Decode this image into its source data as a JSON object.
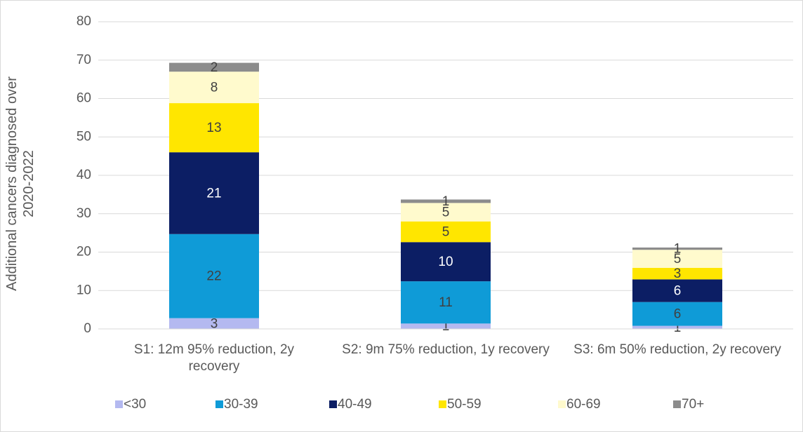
{
  "chart_data": {
    "type": "stacked_bar",
    "y_label": "Additional cancers diagnosed over 2020-2022",
    "categories": [
      "S1: 12m 95% reduction, 2y recovery",
      "S2: 9m 75% reduction, 1y recovery",
      "S3: 6m 50% reduction, 2y recovery"
    ],
    "series": [
      {
        "name": "<30",
        "color": "#b4b9f0",
        "label_color": "#404040",
        "values": [
          2.8,
          1.4,
          0.8
        ],
        "value_labels": [
          "3",
          "1",
          "1"
        ]
      },
      {
        "name": "30-39",
        "color": "#0f9bd7",
        "label_color": "#404040",
        "values": [
          21.9,
          11.0,
          6.2
        ],
        "value_labels": [
          "22",
          "11",
          "6"
        ]
      },
      {
        "name": "40-49",
        "color": "#0c1e64",
        "label_color": "#ffffff",
        "values": [
          21.3,
          10.2,
          5.9
        ],
        "value_labels": [
          "21",
          "10",
          "6"
        ]
      },
      {
        "name": "50-59",
        "color": "#ffe600",
        "label_color": "#404040",
        "values": [
          12.8,
          5.4,
          3.0
        ],
        "value_labels": [
          "13",
          "5",
          "3"
        ]
      },
      {
        "name": "60-69",
        "color": "#fffacd",
        "label_color": "#404040",
        "values": [
          8.2,
          4.8,
          4.7
        ],
        "value_labels": [
          "8",
          "5",
          "5"
        ]
      },
      {
        "name": "70+",
        "color": "#8c8c8c",
        "label_color": "#404040",
        "values": [
          2.3,
          0.9,
          0.6
        ],
        "value_labels": [
          "2",
          "1",
          "1"
        ]
      }
    ],
    "ylim": [
      0,
      80
    ],
    "yticks": [
      0,
      10,
      20,
      30,
      40,
      50,
      60,
      70,
      80
    ],
    "grid": true,
    "legend": "bottom"
  }
}
